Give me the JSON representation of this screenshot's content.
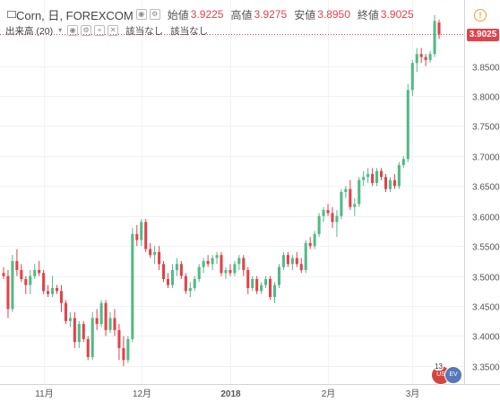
{
  "header": {
    "symbol": "Corn, 日, FOREXCOM",
    "open_label": "始値",
    "open_value": "3.9225",
    "high_label": "高値",
    "high_value": "3.9275",
    "low_label": "安値",
    "low_value": "3.8950",
    "close_label": "終値",
    "close_value": "3.9025"
  },
  "volume": {
    "label": "出来高 (20)",
    "value1": "該当なし",
    "value2": "該当なし"
  },
  "price_badge": "3.9025",
  "alert_symbol": "!",
  "event_count": "13",
  "colors": {
    "up": "#53b987",
    "down": "#e0434b",
    "grid": "#f0f2f4",
    "axis_text": "#555555"
  },
  "chart_data": {
    "type": "candlestick",
    "ylim": [
      3.32,
      3.96
    ],
    "y_ticks": [
      3.35,
      3.4,
      3.45,
      3.5,
      3.55,
      3.6,
      3.65,
      3.7,
      3.75,
      3.8,
      3.85,
      3.9
    ],
    "y_tick_labels": [
      "3.3500",
      "3.4000",
      "3.4500",
      "3.5000",
      "3.5500",
      "3.6000",
      "3.6500",
      "3.7000",
      "3.7500",
      "3.8000",
      "3.8500",
      "3.9000"
    ],
    "x_labels": [
      {
        "label": "11月",
        "index": 9
      },
      {
        "label": "12月",
        "index": 31
      },
      {
        "label": "2018",
        "index": 51
      },
      {
        "label": "2月",
        "index": 73
      },
      {
        "label": "3月",
        "index": 92
      }
    ],
    "candles": [
      [
        3.505,
        3.515,
        3.495,
        3.5
      ],
      [
        3.5,
        3.51,
        3.43,
        3.445
      ],
      [
        3.445,
        3.535,
        3.44,
        3.525
      ],
      [
        3.525,
        3.545,
        3.5,
        3.51
      ],
      [
        3.51,
        3.52,
        3.49,
        3.495
      ],
      [
        3.495,
        3.5,
        3.47,
        3.485
      ],
      [
        3.485,
        3.51,
        3.47,
        3.5
      ],
      [
        3.5,
        3.52,
        3.495,
        3.51
      ],
      [
        3.51,
        3.525,
        3.5,
        3.505
      ],
      [
        3.505,
        3.51,
        3.47,
        3.475
      ],
      [
        3.475,
        3.485,
        3.465,
        3.47
      ],
      [
        3.47,
        3.5,
        3.465,
        3.48
      ],
      [
        3.48,
        3.485,
        3.47,
        3.475
      ],
      [
        3.475,
        3.485,
        3.44,
        3.455
      ],
      [
        3.455,
        3.46,
        3.42,
        3.425
      ],
      [
        3.425,
        3.44,
        3.415,
        3.43
      ],
      [
        3.43,
        3.44,
        3.38,
        3.39
      ],
      [
        3.39,
        3.425,
        3.38,
        3.42
      ],
      [
        3.42,
        3.425,
        3.39,
        3.395
      ],
      [
        3.395,
        3.4,
        3.36,
        3.365
      ],
      [
        3.365,
        3.44,
        3.36,
        3.43
      ],
      [
        3.43,
        3.445,
        3.41,
        3.42
      ],
      [
        3.42,
        3.46,
        3.415,
        3.455
      ],
      [
        3.455,
        3.46,
        3.4,
        3.41
      ],
      [
        3.41,
        3.44,
        3.405,
        3.43
      ],
      [
        3.43,
        3.445,
        3.4,
        3.41
      ],
      [
        3.41,
        3.42,
        3.36,
        3.38
      ],
      [
        3.38,
        3.4,
        3.35,
        3.36
      ],
      [
        3.36,
        3.4,
        3.355,
        3.395
      ],
      [
        3.395,
        3.58,
        3.39,
        3.57
      ],
      [
        3.57,
        3.585,
        3.55,
        3.56
      ],
      [
        3.56,
        3.595,
        3.55,
        3.59
      ],
      [
        3.59,
        3.595,
        3.54,
        3.545
      ],
      [
        3.545,
        3.555,
        3.53,
        3.535
      ],
      [
        3.535,
        3.55,
        3.52,
        3.54
      ],
      [
        3.54,
        3.55,
        3.51,
        3.52
      ],
      [
        3.52,
        3.525,
        3.49,
        3.495
      ],
      [
        3.495,
        3.505,
        3.48,
        3.485
      ],
      [
        3.485,
        3.52,
        3.48,
        3.51
      ],
      [
        3.51,
        3.53,
        3.5,
        3.52
      ],
      [
        3.52,
        3.525,
        3.495,
        3.5
      ],
      [
        3.5,
        3.505,
        3.47,
        3.475
      ],
      [
        3.475,
        3.49,
        3.465,
        3.48
      ],
      [
        3.48,
        3.5,
        3.475,
        3.495
      ],
      [
        3.495,
        3.52,
        3.49,
        3.515
      ],
      [
        3.515,
        3.53,
        3.505,
        3.525
      ],
      [
        3.525,
        3.535,
        3.515,
        3.52
      ],
      [
        3.52,
        3.535,
        3.51,
        3.53
      ],
      [
        3.53,
        3.54,
        3.52,
        3.535
      ],
      [
        3.535,
        3.54,
        3.5,
        3.505
      ],
      [
        3.505,
        3.515,
        3.495,
        3.51
      ],
      [
        3.51,
        3.52,
        3.5,
        3.505
      ],
      [
        3.505,
        3.525,
        3.5,
        3.52
      ],
      [
        3.52,
        3.535,
        3.51,
        3.53
      ],
      [
        3.53,
        3.535,
        3.5,
        3.51
      ],
      [
        3.51,
        3.515,
        3.47,
        3.48
      ],
      [
        3.48,
        3.5,
        3.475,
        3.495
      ],
      [
        3.495,
        3.5,
        3.47,
        3.475
      ],
      [
        3.475,
        3.49,
        3.47,
        3.485
      ],
      [
        3.485,
        3.5,
        3.48,
        3.495
      ],
      [
        3.495,
        3.5,
        3.46,
        3.465
      ],
      [
        3.465,
        3.49,
        3.455,
        3.485
      ],
      [
        3.485,
        3.52,
        3.48,
        3.515
      ],
      [
        3.515,
        3.54,
        3.51,
        3.535
      ],
      [
        3.535,
        3.54,
        3.515,
        3.52
      ],
      [
        3.52,
        3.535,
        3.51,
        3.53
      ],
      [
        3.53,
        3.54,
        3.515,
        3.52
      ],
      [
        3.52,
        3.53,
        3.505,
        3.51
      ],
      [
        3.51,
        3.56,
        3.505,
        3.555
      ],
      [
        3.555,
        3.565,
        3.545,
        3.55
      ],
      [
        3.55,
        3.575,
        3.545,
        3.57
      ],
      [
        3.57,
        3.605,
        3.565,
        3.6
      ],
      [
        3.6,
        3.615,
        3.59,
        3.61
      ],
      [
        3.61,
        3.62,
        3.6,
        3.605
      ],
      [
        3.605,
        3.615,
        3.58,
        3.59
      ],
      [
        3.59,
        3.61,
        3.565,
        3.6
      ],
      [
        3.6,
        3.645,
        3.595,
        3.64
      ],
      [
        3.64,
        3.65,
        3.63,
        3.645
      ],
      [
        3.645,
        3.66,
        3.61,
        3.615
      ],
      [
        3.615,
        3.63,
        3.6,
        3.62
      ],
      [
        3.62,
        3.665,
        3.615,
        3.66
      ],
      [
        3.66,
        3.675,
        3.65,
        3.665
      ],
      [
        3.665,
        3.68,
        3.655,
        3.67
      ],
      [
        3.67,
        3.68,
        3.65,
        3.655
      ],
      [
        3.655,
        3.68,
        3.65,
        3.675
      ],
      [
        3.675,
        3.68,
        3.66,
        3.665
      ],
      [
        3.665,
        3.67,
        3.64,
        3.645
      ],
      [
        3.645,
        3.665,
        3.64,
        3.66
      ],
      [
        3.66,
        3.67,
        3.645,
        3.65
      ],
      [
        3.65,
        3.69,
        3.645,
        3.685
      ],
      [
        3.685,
        3.7,
        3.68,
        3.695
      ],
      [
        3.695,
        3.82,
        3.69,
        3.81
      ],
      [
        3.81,
        3.86,
        3.8,
        3.855
      ],
      [
        3.855,
        3.88,
        3.84,
        3.87
      ],
      [
        3.87,
        3.88,
        3.855,
        3.865
      ],
      [
        3.865,
        3.87,
        3.85,
        3.86
      ],
      [
        3.86,
        3.875,
        3.855,
        3.87
      ],
      [
        3.87,
        3.935,
        3.865,
        3.925
      ],
      [
        3.9225,
        3.9275,
        3.895,
        3.9025
      ]
    ]
  }
}
